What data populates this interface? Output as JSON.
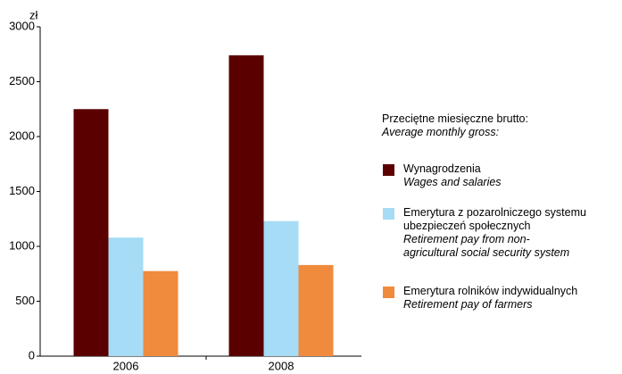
{
  "chart_data": {
    "type": "bar",
    "unit": "zł",
    "categories": [
      "2006",
      "2008"
    ],
    "ylim": [
      0,
      3000
    ],
    "yticks": [
      0,
      500,
      1000,
      1500,
      2000,
      2500,
      3000
    ],
    "legend_title": "Przeciętne miesięczne brutto:",
    "legend_title_en": "Average monthly gross:",
    "series": [
      {
        "name": "Wynagrodzenia",
        "name_en": "Wages and salaries",
        "color": "#5a0000",
        "values": [
          2250,
          2740
        ]
      },
      {
        "name": "Emerytura z pozarolniczego systemu ubezpieczeń społecznych",
        "name_en": "Retirement pay from non-agricultural social security system",
        "color": "#a6dcf5",
        "values": [
          1080,
          1230
        ]
      },
      {
        "name": "Emerytura rolników indywidualnych",
        "name_en": "Retirement pay of farmers",
        "color": "#f08a3c",
        "values": [
          775,
          830
        ]
      }
    ]
  }
}
